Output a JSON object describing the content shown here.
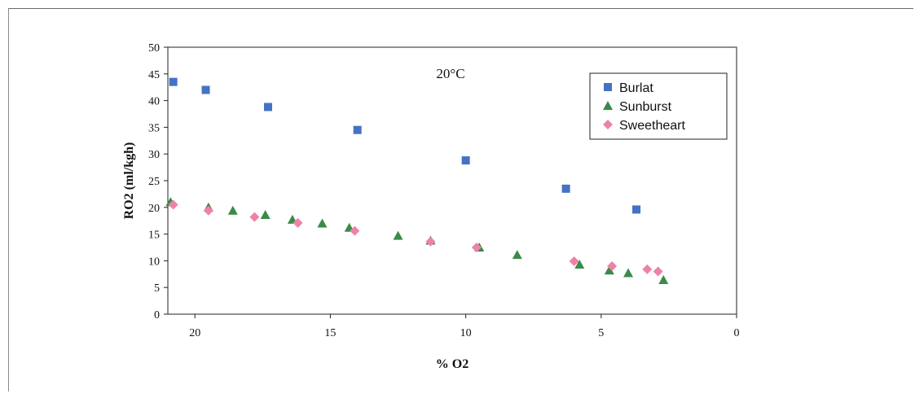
{
  "chart_data": {
    "type": "scatter",
    "xlabel": "% O2",
    "ylabel": "RO2 (ml/kgh)",
    "annotation": "20°C",
    "xlim": [
      21,
      0
    ],
    "ylim": [
      0,
      50
    ],
    "x_reversed": true,
    "x_ticks": [
      20,
      15,
      10,
      5,
      0
    ],
    "y_ticks": [
      0,
      5,
      10,
      15,
      20,
      25,
      30,
      35,
      40,
      45,
      50
    ],
    "grid": false,
    "legend_position": "top-right",
    "series": [
      {
        "name": "Burlat",
        "marker": "square",
        "color": "#4472c4",
        "points": [
          [
            20.8,
            43.5
          ],
          [
            19.6,
            42.0
          ],
          [
            17.3,
            38.8
          ],
          [
            14.0,
            34.5
          ],
          [
            10.0,
            28.8
          ],
          [
            6.3,
            23.5
          ],
          [
            3.7,
            19.6
          ]
        ]
      },
      {
        "name": "Sunburst",
        "marker": "triangle",
        "color": "#3a8a4a",
        "points": [
          [
            20.9,
            21.0
          ],
          [
            19.5,
            20.0
          ],
          [
            18.6,
            19.4
          ],
          [
            17.4,
            18.6
          ],
          [
            16.4,
            17.7
          ],
          [
            15.3,
            17.0
          ],
          [
            14.3,
            16.2
          ],
          [
            12.5,
            14.7
          ],
          [
            11.3,
            13.8
          ],
          [
            9.5,
            12.5
          ],
          [
            8.1,
            11.1
          ],
          [
            5.8,
            9.3
          ],
          [
            4.7,
            8.2
          ],
          [
            4.0,
            7.7
          ],
          [
            2.7,
            6.4
          ]
        ]
      },
      {
        "name": "Sweetheart",
        "marker": "diamond",
        "color": "#ee82a6",
        "points": [
          [
            20.8,
            20.5
          ],
          [
            19.5,
            19.4
          ],
          [
            17.8,
            18.2
          ],
          [
            16.2,
            17.1
          ],
          [
            14.1,
            15.6
          ],
          [
            11.3,
            13.6
          ],
          [
            9.6,
            12.5
          ],
          [
            6.0,
            9.9
          ],
          [
            4.6,
            9.0
          ],
          [
            3.3,
            8.4
          ],
          [
            2.9,
            8.0
          ]
        ]
      }
    ]
  }
}
